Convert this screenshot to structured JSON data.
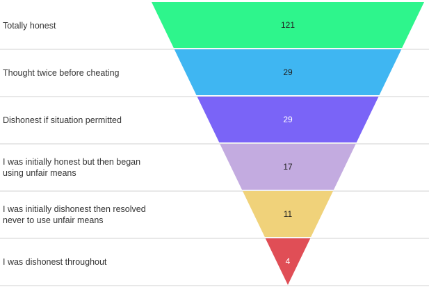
{
  "chart_data": {
    "type": "funnel",
    "title": "",
    "categories": [
      "Totally honest",
      "Thought twice before cheating",
      "Dishonest if situation permitted",
      "I was initially honest but then began using unfair means",
      "I was initially dishonest then resolved never to use unfair means",
      "I was dishonest throughout"
    ],
    "category_lines": [
      [
        "Totally honest"
      ],
      [
        "Thought twice before cheating"
      ],
      [
        "Dishonest if situation permitted"
      ],
      [
        "I was initially honest but then began",
        "using unfair means"
      ],
      [
        "I was initially dishonest then resolved",
        "never to use unfair means"
      ],
      [
        "I was dishonest throughout"
      ]
    ],
    "values": [
      121,
      29,
      29,
      17,
      11,
      4
    ],
    "value_labels": [
      "121",
      "29",
      "29",
      "17",
      "11",
      "4"
    ],
    "colors": [
      "#2ef58c",
      "#3fb6f2",
      "#7a64f7",
      "#c3abe0",
      "#f0d27a",
      "#e04e56"
    ],
    "value_label_colors": [
      "#222222",
      "#222222",
      "#ffffff",
      "#222222",
      "#222222",
      "#ffffff"
    ],
    "separator_color": "#d0d0d0"
  }
}
